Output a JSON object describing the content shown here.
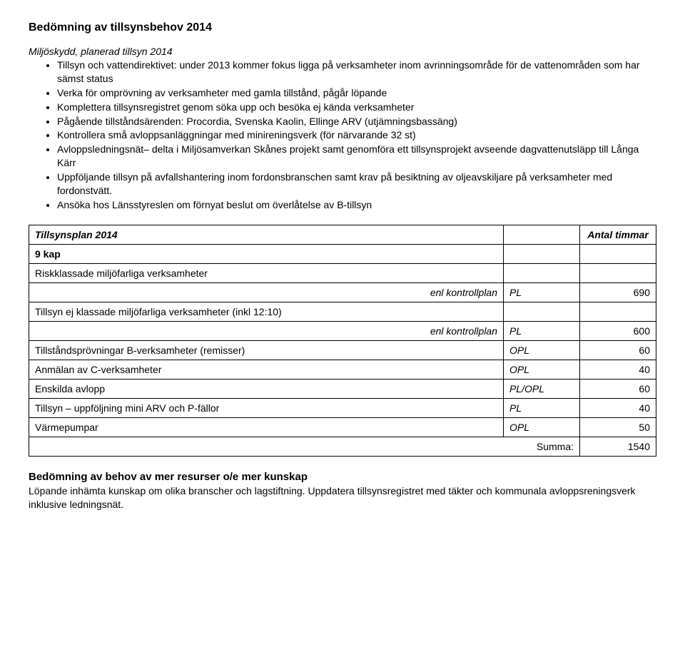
{
  "headings": {
    "main": "Bedömning av tillsynsbehov 2014",
    "sub": "Miljöskydd, planerad tillsyn 2014",
    "closing": "Bedömning av behov av mer resurser o/e mer kunskap"
  },
  "bullets": [
    "Tillsyn och vattendirektivet: under 2013 kommer fokus ligga på verksamheter inom avrinningsområde för de vattenområden som har sämst status",
    "Verka för omprövning av verksamheter med gamla tillstånd, pågår löpande",
    "Komplettera tillsynsregistret genom söka upp och besöka ej kända verksamheter",
    "Pågående tillståndsärenden: Procordia, Svenska Kaolin, Ellinge ARV (utjämningsbassäng)",
    "Kontrollera små avloppsanläggningar med minireningsverk (för närvarande 32 st)",
    "Avloppsledningsnät– delta i Miljösamverkan Skånes projekt samt genomföra ett tillsynsprojekt avseende dagvattenutsläpp till Långa Kärr",
    "Uppföljande tillsyn på avfallshantering inom fordonsbranschen samt krav på besiktning av oljeavskiljare på verksamheter med fordonstvätt.",
    "Ansöka hos Länsstyreslen om förnyat beslut om överlåtelse av B-tillsyn"
  ],
  "table": {
    "title": "Tillsynsplan 2014",
    "hours_header": "Antal timmar",
    "chapter": "9 kap",
    "enl_kontrollplan": "enl kontrollplan",
    "summa_label": "Summa:",
    "summa_value": "1540",
    "rows": {
      "r1_label": "Riskklassade miljöfarliga verksamheter",
      "r1_sub_code": "PL",
      "r1_sub_hours": "690",
      "r2_label": "Tillsyn ej klassade miljöfarliga verksamheter (inkl 12:10)",
      "r2_sub_code": "PL",
      "r2_sub_hours": "600",
      "r3_label": "Tillståndsprövningar B-verksamheter (remisser)",
      "r3_code": "OPL",
      "r3_hours": "60",
      "r4_label": "Anmälan av C-verksamheter",
      "r4_code": "OPL",
      "r4_hours": "40",
      "r5_label": "Enskilda avlopp",
      "r5_code": "PL/OPL",
      "r5_hours": "60",
      "r6_label": "Tillsyn – uppföljning mini ARV och P-fällor",
      "r6_code": "PL",
      "r6_hours": "40",
      "r7_label": "Värmepumpar",
      "r7_code": "OPL",
      "r7_hours": "50"
    }
  },
  "closing_text": "Löpande inhämta kunskap om olika branscher och lagstiftning. Uppdatera tillsynsregistret med täkter och kommunala avloppsreningsverk inklusive ledningsnät."
}
